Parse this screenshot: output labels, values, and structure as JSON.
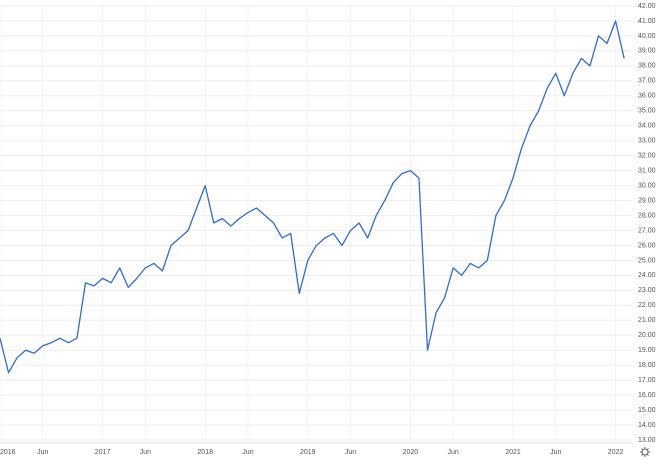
{
  "chart_data": {
    "type": "line",
    "categories": [
      "2016",
      null,
      null,
      null,
      null,
      "Jun",
      null,
      null,
      null,
      null,
      null,
      null,
      "2017",
      null,
      null,
      null,
      null,
      "Jun",
      null,
      null,
      null,
      null,
      null,
      null,
      "2018",
      null,
      null,
      null,
      null,
      "Jun",
      null,
      null,
      null,
      null,
      null,
      null,
      "2019",
      null,
      null,
      null,
      null,
      "Jun",
      null,
      null,
      null,
      null,
      null,
      null,
      "2020",
      null,
      null,
      null,
      null,
      "Jun",
      null,
      null,
      null,
      null,
      null,
      null,
      "2021",
      null,
      null,
      null,
      null,
      "Jun",
      null,
      null,
      null,
      null,
      null,
      null,
      "2022",
      null
    ],
    "values": [
      19.8,
      17.5,
      18.5,
      19.0,
      18.8,
      19.3,
      19.5,
      19.8,
      19.5,
      19.8,
      23.5,
      23.3,
      23.8,
      23.5,
      24.5,
      23.2,
      23.8,
      24.5,
      24.8,
      24.3,
      26.0,
      26.5,
      27.0,
      28.5,
      30.0,
      27.5,
      27.8,
      27.3,
      27.8,
      28.2,
      28.5,
      28.0,
      27.5,
      26.5,
      26.8,
      22.8,
      25.0,
      26.0,
      26.5,
      26.8,
      26.0,
      27.0,
      27.5,
      26.5,
      28.0,
      29.0,
      30.2,
      30.8,
      31.0,
      30.5,
      19.0,
      21.5,
      22.5,
      24.5,
      24.0,
      24.8,
      24.5,
      25.0,
      28.0,
      29.0,
      30.5,
      32.5,
      34.0,
      35.0,
      36.5,
      37.5,
      36.0,
      37.5,
      38.5,
      38.0,
      40.0,
      39.5,
      41.0,
      38.5
    ],
    "color": "#2f6bd6",
    "ylim": [
      13,
      42
    ],
    "yticks": [
      {
        "value": 13,
        "label": "13.00"
      },
      {
        "value": 14,
        "label": "14.00"
      },
      {
        "value": 15,
        "label": "15.00"
      },
      {
        "value": 16,
        "label": "16.00"
      },
      {
        "value": 17,
        "label": "17.00"
      },
      {
        "value": 18,
        "label": "18.00"
      },
      {
        "value": 19,
        "label": "19.00"
      },
      {
        "value": 20,
        "label": "20.00"
      },
      {
        "value": 21,
        "label": "21.00"
      },
      {
        "value": 22,
        "label": "22.00"
      },
      {
        "value": 23,
        "label": "23.00"
      },
      {
        "value": 24,
        "label": "24.00"
      },
      {
        "value": 25,
        "label": "25.00"
      },
      {
        "value": 26,
        "label": "26.00"
      },
      {
        "value": 27,
        "label": "27.00"
      },
      {
        "value": 28,
        "label": "28.00"
      },
      {
        "value": 29,
        "label": "29.00"
      },
      {
        "value": 30,
        "label": "30.00"
      },
      {
        "value": 31,
        "label": "31.00"
      },
      {
        "value": 32,
        "label": "32.00"
      },
      {
        "value": 33,
        "label": "33.00"
      },
      {
        "value": 34,
        "label": "34.00"
      },
      {
        "value": 35,
        "label": "35.00"
      },
      {
        "value": 36,
        "label": "36.00"
      },
      {
        "value": 37,
        "label": "37.00"
      },
      {
        "value": 38,
        "label": "38.00"
      },
      {
        "value": 39,
        "label": "39.00"
      },
      {
        "value": 40,
        "label": "40.00"
      },
      {
        "value": 41,
        "label": "41.00"
      },
      {
        "value": 42,
        "label": "42.00"
      }
    ],
    "grid": true
  }
}
